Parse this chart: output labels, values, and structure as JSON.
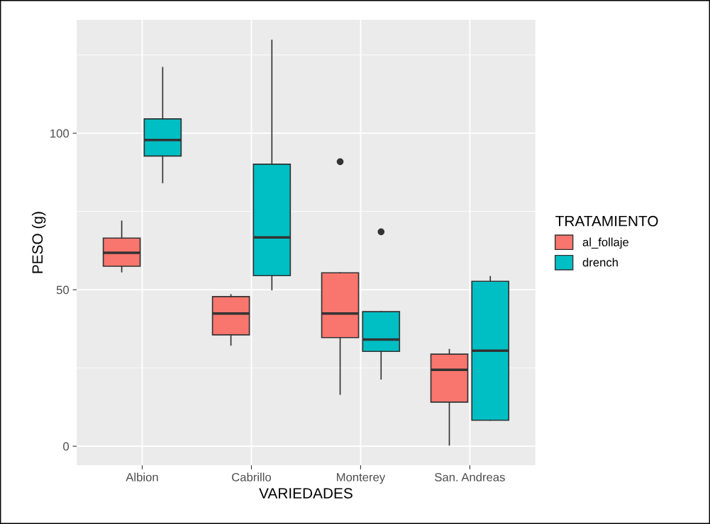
{
  "chart_data": {
    "type": "box",
    "xlabel": "VARIEDADES",
    "ylabel": "PESO (g)",
    "legend_title": "TRATAMIENTO",
    "categories": [
      "Albion",
      "Cabrillo",
      "Monterey",
      "San. Andreas"
    ],
    "ylim": [
      -6.1,
      136.2
    ],
    "yticks": [
      0,
      50,
      100
    ],
    "grid": true,
    "legend": "right",
    "series": [
      {
        "name": "al_follaje",
        "color": "#f8766d",
        "boxes": [
          {
            "low": 55.7,
            "q1": 57.5,
            "median": 61.8,
            "q3": 66.5,
            "high": 71.9
          },
          {
            "low": 32.3,
            "q1": 35.6,
            "median": 42.4,
            "q3": 47.8,
            "high": 48.4
          },
          {
            "low": 16.6,
            "q1": 34.7,
            "median": 42.4,
            "q3": 55.4,
            "high": 55.4,
            "outliers": [
              90.9
            ]
          },
          {
            "low": 0.4,
            "q1": 14.1,
            "median": 24.4,
            "q3": 29.4,
            "high": 30.9
          }
        ]
      },
      {
        "name": "drench",
        "color": "#00bfc4",
        "boxes": [
          {
            "low": 84.2,
            "q1": 92.7,
            "median": 97.8,
            "q3": 104.6,
            "high": 121
          },
          {
            "low": 50,
            "q1": 54.5,
            "median": 66.7,
            "q3": 90.1,
            "high": 129.7
          },
          {
            "low": 21.5,
            "q1": 30.3,
            "median": 34.1,
            "q3": 43.0,
            "high": 43.0,
            "outliers": [
              68.5
            ]
          },
          {
            "low": 8.3,
            "q1": 8.3,
            "median": 30.5,
            "q3": 52.7,
            "high": 54.2
          }
        ]
      }
    ]
  }
}
